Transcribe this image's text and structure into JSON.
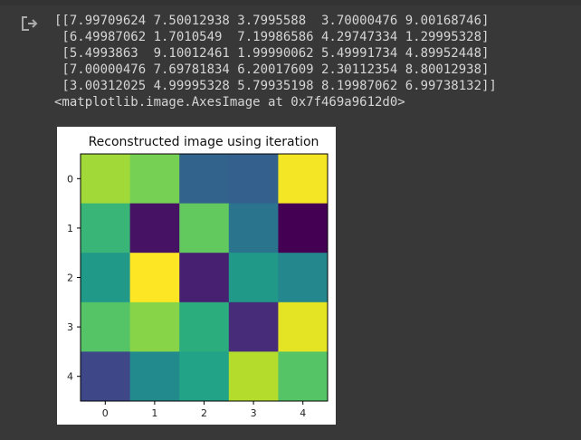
{
  "output": {
    "array_lines": [
      "[[7.99709624 7.50012938 3.7995588  3.70000476 9.00168746]",
      " [6.49987062 1.7010549  7.19986586 4.29747334 1.29995328]",
      " [5.4993863  9.10012461 1.99990062 5.49991734 4.89952448]",
      " [7.00000476 7.69781834 6.20017609 2.30112354 8.80012938]",
      " [3.00312025 4.99995328 5.79935198 8.19987062 6.99738132]]"
    ],
    "repr": "<matplotlib.image.AxesImage at 0x7f469a9612d0>"
  },
  "icons": {
    "output_icon": "output-redirect-icon"
  },
  "chart_data": {
    "type": "heatmap",
    "title": "Reconstructed image using iteration",
    "colormap": "viridis",
    "x_ticks": [
      "0",
      "1",
      "2",
      "3",
      "4"
    ],
    "y_ticks": [
      "0",
      "1",
      "2",
      "3",
      "4"
    ],
    "values": [
      [
        7.99709624,
        7.50012938,
        3.7995588,
        3.70000476,
        9.00168746
      ],
      [
        6.49987062,
        1.7010549,
        7.19986586,
        4.29747334,
        1.29995328
      ],
      [
        5.4993863,
        9.10012461,
        1.99990062,
        5.49991734,
        4.89952448
      ],
      [
        7.00000476,
        7.69781834,
        6.20017609,
        2.30112354,
        8.80012938
      ],
      [
        3.00312025,
        4.99995328,
        5.79935198,
        8.19987062,
        6.99738132
      ]
    ],
    "vmin": 1.29995328,
    "vmax": 9.10012461
  }
}
